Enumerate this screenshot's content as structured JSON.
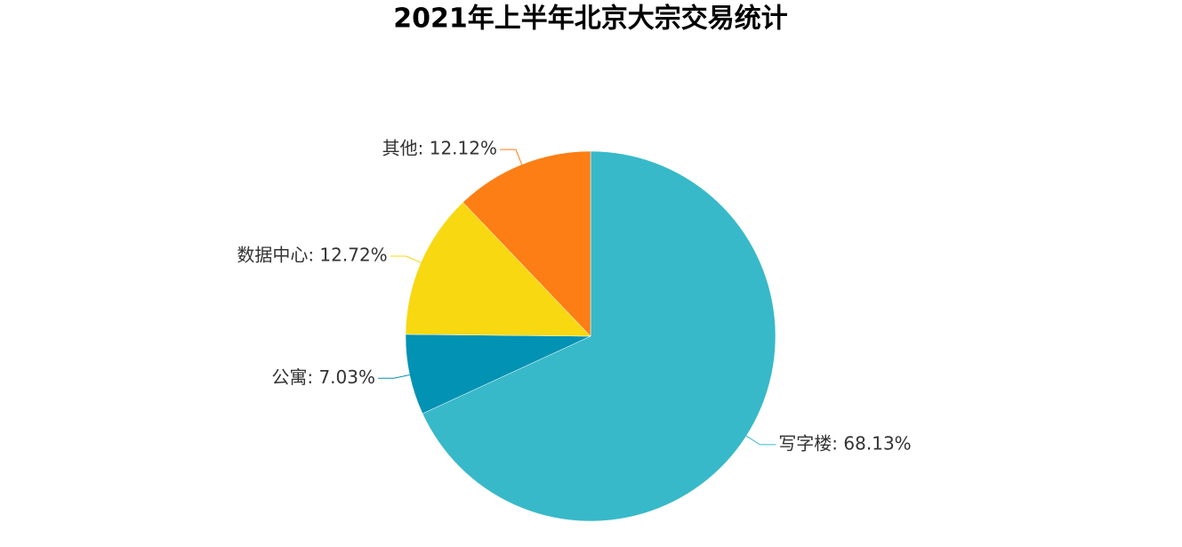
{
  "chart_data": {
    "type": "pie",
    "title": "2021年上半年北京大宗交易统计",
    "categories": [
      "写字楼",
      "公寓",
      "数据中心",
      "其他"
    ],
    "values": [
      68.13,
      7.03,
      12.72,
      12.12
    ],
    "value_labels": [
      "写字楼: 68.13%",
      "公寓: 7.03%",
      "数据中心: 12.72%",
      "其他: 12.12%"
    ],
    "colors": [
      "#37b9c9",
      "#0292b3",
      "#f8d811",
      "#fd7e14"
    ]
  }
}
